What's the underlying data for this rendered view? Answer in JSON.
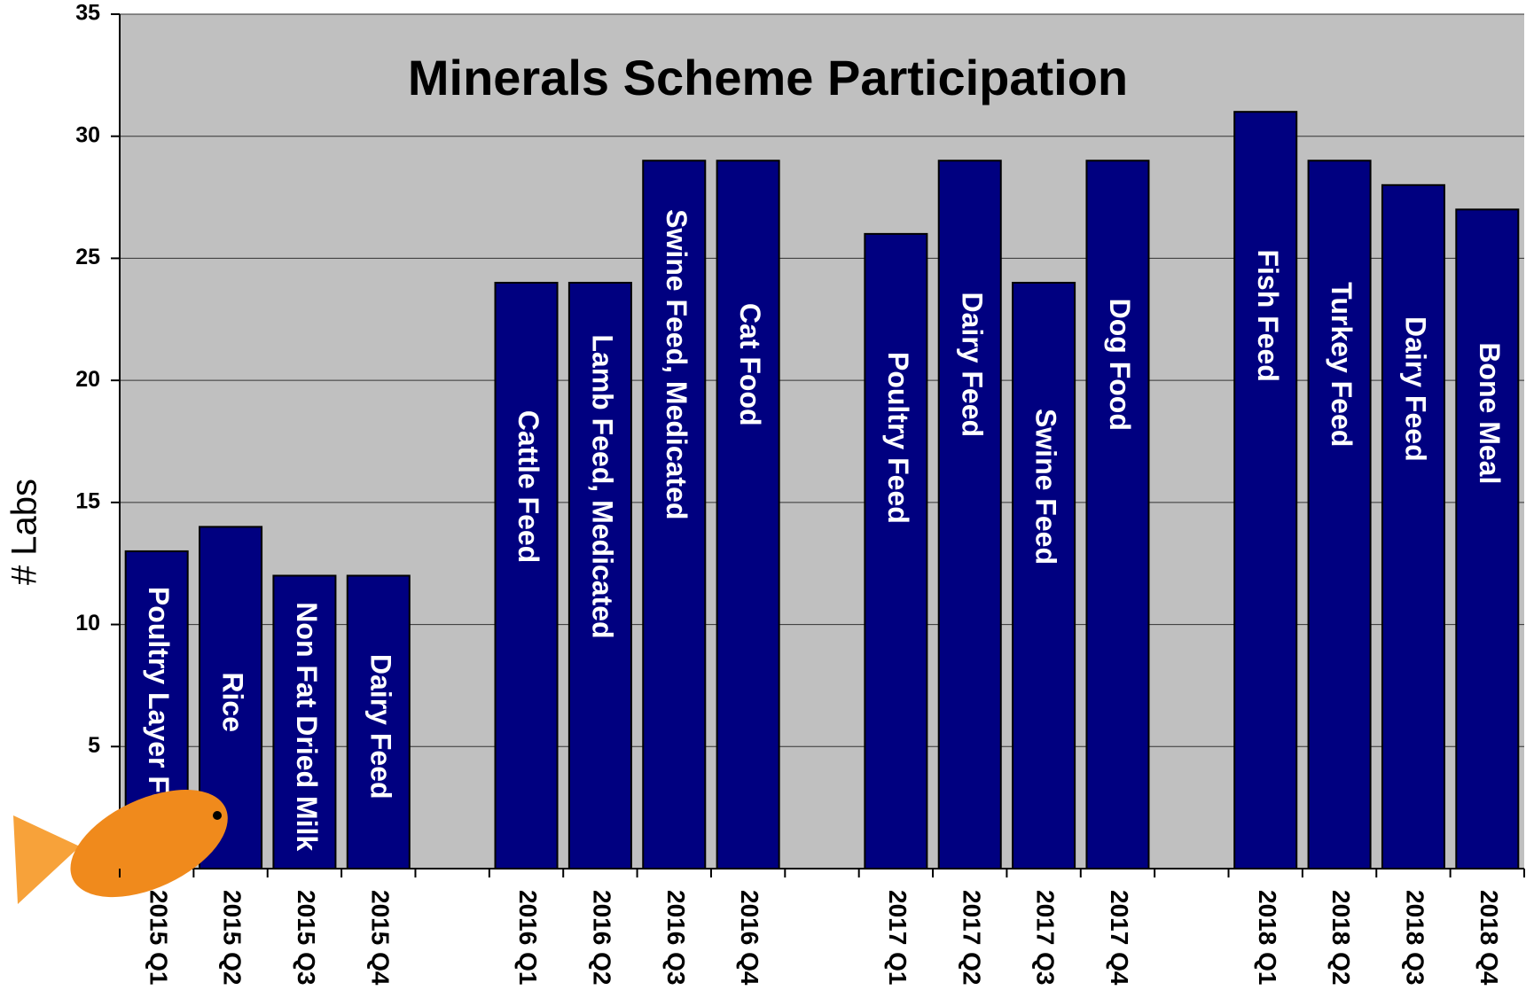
{
  "chart_data": {
    "type": "bar",
    "title": "Minerals Scheme Participation",
    "y_label": "# Labs",
    "categories": [
      "2015 Q1",
      "2015 Q2",
      "2015 Q3",
      "2015 Q4",
      null,
      "2016 Q1",
      "2016 Q2",
      "2016 Q3",
      "2016 Q4",
      null,
      "2017 Q1",
      "2017 Q2",
      "2017 Q3",
      "2017 Q4",
      null,
      "2018 Q1",
      "2018 Q2",
      "2018 Q3",
      "2018 Q4"
    ],
    "values": [
      13,
      14,
      12,
      12,
      null,
      24,
      24,
      29,
      29,
      null,
      26,
      29,
      24,
      29,
      null,
      31,
      29,
      28,
      27
    ],
    "bar_labels": [
      "Poultry Layer Feed",
      "Rice",
      "Non Fat Dried Milk",
      "Dairy Feed",
      null,
      "Cattle Feed",
      "Lamb Feed, Medicated",
      "Swine Feed, Medicated",
      "Cat Food",
      null,
      "Poultry Feed",
      "Dairy Feed",
      "Swine Feed",
      "Dog Food",
      null,
      "Fish Feed",
      "Turkey Feed",
      "Dairy Feed",
      "Bone Meal"
    ],
    "color": "#000080",
    "ylim": [
      0,
      35
    ],
    "yticks": [
      5,
      10,
      15,
      20,
      25,
      30,
      35
    ],
    "grid": true
  }
}
